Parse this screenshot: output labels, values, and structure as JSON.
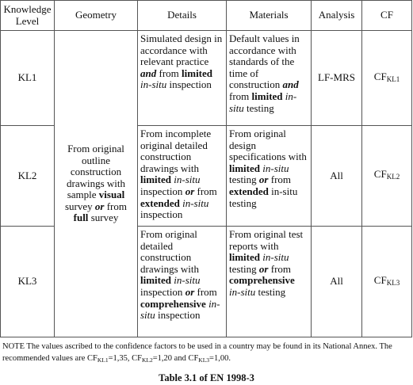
{
  "table": {
    "header": [
      "Knowledge Level",
      "Geometry",
      "Details",
      "Materials",
      "Analysis",
      "CF"
    ],
    "geometry": [
      {
        "text": "From original outline construction drawings with sample "
      },
      {
        "text": "visual",
        "style": "bold"
      },
      {
        "text": " survey "
      },
      {
        "text": "or",
        "style": "bold-italic"
      },
      {
        "text": " from "
      },
      {
        "text": "full",
        "style": "bold"
      },
      {
        "text": " survey"
      }
    ],
    "rows": [
      {
        "level": "KL1",
        "details": [
          {
            "text": "Simulated design in accordance with relevant practice "
          },
          {
            "text": "and",
            "style": "bold-italic"
          },
          {
            "text": " from "
          },
          {
            "text": "limited",
            "style": "bold"
          },
          {
            "text": " in-situ",
            "style": "italic"
          },
          {
            "text": " inspection"
          }
        ],
        "materials": [
          {
            "text": "Default values in accordance with standards of the time of construction "
          },
          {
            "text": "and",
            "style": "bold-italic"
          },
          {
            "text": " from "
          },
          {
            "text": "limited",
            "style": "bold"
          },
          {
            "text": " in-situ",
            "style": "italic"
          },
          {
            "text": " testing"
          }
        ],
        "analysis": "LF-MRS",
        "cf": [
          {
            "text": "CF"
          },
          {
            "text": "KL1",
            "style": "sub"
          }
        ]
      },
      {
        "level": "KL2",
        "details": [
          {
            "text": "From incomplete original detailed construction drawings with "
          },
          {
            "text": "limited",
            "style": "bold"
          },
          {
            "text": " in-situ",
            "style": "italic"
          },
          {
            "text": " inspection "
          },
          {
            "text": "or",
            "style": "bold-italic"
          },
          {
            "text": " from "
          },
          {
            "text": "extended",
            "style": "bold"
          },
          {
            "text": " in-situ",
            "style": "italic"
          },
          {
            "text": " inspection"
          }
        ],
        "materials": [
          {
            "text": "From original design specifications with "
          },
          {
            "text": "limited",
            "style": "bold"
          },
          {
            "text": " in-situ",
            "style": "italic"
          },
          {
            "text": " testing "
          },
          {
            "text": "or",
            "style": "bold-italic"
          },
          {
            "text": " from "
          },
          {
            "text": "extended",
            "style": "bold"
          },
          {
            "text": " in-situ testing"
          }
        ],
        "analysis": "All",
        "cf": [
          {
            "text": "CF"
          },
          {
            "text": "KL2",
            "style": "sub"
          }
        ]
      },
      {
        "level": "KL3",
        "details": [
          {
            "text": "From original detailed construction drawings with "
          },
          {
            "text": "limited",
            "style": "bold"
          },
          {
            "text": " in-situ",
            "style": "italic"
          },
          {
            "text": " inspection "
          },
          {
            "text": "or",
            "style": "bold-italic"
          },
          {
            "text": " from "
          },
          {
            "text": "comprehensive",
            "style": "bold"
          },
          {
            "text": " in-situ",
            "style": "italic"
          },
          {
            "text": " inspection"
          }
        ],
        "materials": [
          {
            "text": "From original test reports with "
          },
          {
            "text": "limited",
            "style": "bold"
          },
          {
            "text": " in-situ",
            "style": "italic"
          },
          {
            "text": " testing "
          },
          {
            "text": "or",
            "style": "bold-italic"
          },
          {
            "text": " from "
          },
          {
            "text": "comprehensive",
            "style": "bold"
          },
          {
            "text": " in-situ",
            "style": "italic"
          },
          {
            "text": " testing"
          }
        ],
        "analysis": "All",
        "cf": [
          {
            "text": "CF"
          },
          {
            "text": "KL3",
            "style": "sub"
          }
        ]
      }
    ]
  },
  "note": [
    {
      "text": "NOTE The values ascribed to the confidence factors to be used in a country may be found in its National Annex. The recommended values are CF"
    },
    {
      "text": "KL1",
      "style": "sub"
    },
    {
      "text": "=1,35, CF"
    },
    {
      "text": "KL2",
      "style": "sub"
    },
    {
      "text": "=1,20 and CF"
    },
    {
      "text": "KL3",
      "style": "sub"
    },
    {
      "text": "=1,00."
    }
  ],
  "caption": "Table 3.1 of EN 1998-3"
}
